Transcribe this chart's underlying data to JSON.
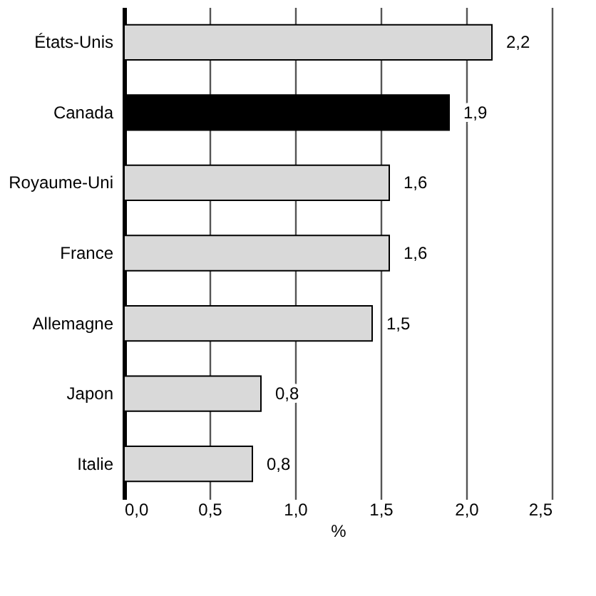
{
  "chart_data": {
    "type": "bar",
    "orientation": "horizontal",
    "xlabel": "%",
    "categories": [
      "États-Unis",
      "Canada",
      "Royaume-Uni",
      "France",
      "Allemagne",
      "Japon",
      "Italie"
    ],
    "values": [
      2.15,
      1.9,
      1.55,
      1.55,
      1.45,
      0.8,
      0.75
    ],
    "colors": [
      "#d9d9d9",
      "#000000",
      "#d9d9d9",
      "#d9d9d9",
      "#d9d9d9",
      "#d9d9d9",
      "#d9d9d9"
    ],
    "value_labels": [
      "2,2",
      "1,9",
      "1,6",
      "1,6",
      "1,5",
      "0,8",
      "0,8"
    ],
    "xlim": [
      0,
      2.5
    ],
    "xticks": [
      {
        "value": 0,
        "label": "0,0"
      },
      {
        "value": 0.5,
        "label": "0,5"
      },
      {
        "value": 1,
        "label": "1,0"
      },
      {
        "value": 1.5,
        "label": "1,5"
      },
      {
        "value": 2,
        "label": "2,0"
      },
      {
        "value": 2.5,
        "label": "2,5"
      }
    ],
    "grid": "x"
  }
}
